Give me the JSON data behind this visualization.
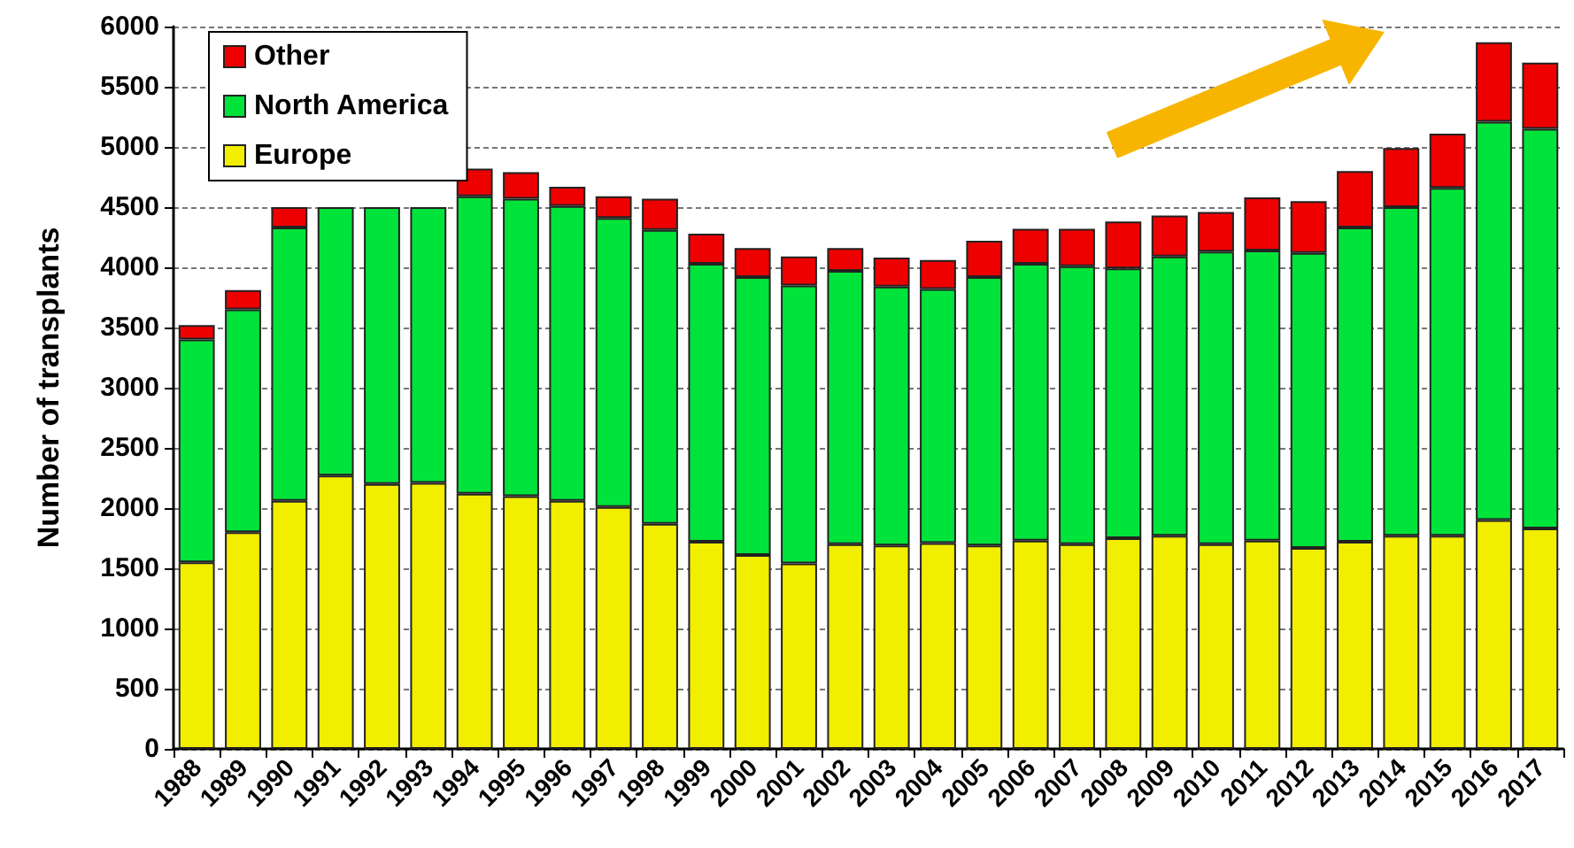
{
  "chart_data": {
    "type": "bar",
    "stacked": true,
    "ylabel": "Number of transplants",
    "categories": [
      "1988",
      "1989",
      "1990",
      "1991",
      "1992",
      "1993",
      "1994",
      "1995",
      "1996",
      "1997",
      "1998",
      "1999",
      "2000",
      "2001",
      "2002",
      "2003",
      "2004",
      "2005",
      "2006",
      "2007",
      "2008",
      "2009",
      "2010",
      "2011",
      "2012",
      "2013",
      "2014",
      "2015",
      "2016",
      "2017"
    ],
    "series": [
      {
        "name": "Europe",
        "color": "#f2ee00",
        "values": [
          1550,
          1800,
          2060,
          2270,
          2200,
          2210,
          2120,
          2100,
          2060,
          2010,
          1870,
          1720,
          1610,
          1540,
          1700,
          1690,
          1710,
          1690,
          1730,
          1700,
          1750,
          1770,
          1700,
          1730,
          1670,
          1720,
          1770,
          1770,
          1900,
          1830
        ]
      },
      {
        "name": "North America",
        "color": "#00e33a",
        "values": [
          1850,
          1850,
          2270,
          2230,
          2300,
          2290,
          2470,
          2470,
          2450,
          2400,
          2440,
          2310,
          2310,
          2310,
          2270,
          2150,
          2110,
          2230,
          2300,
          2310,
          2240,
          2320,
          2430,
          2410,
          2450,
          2610,
          2730,
          2890,
          3310,
          3320
        ]
      },
      {
        "name": "Other",
        "color": "#ee0000",
        "values": [
          120,
          160,
          170,
          null,
          null,
          null,
          230,
          220,
          160,
          180,
          260,
          250,
          240,
          240,
          190,
          240,
          240,
          300,
          290,
          310,
          390,
          340,
          330,
          440,
          430,
          470,
          490,
          450,
          660,
          550
        ]
      }
    ],
    "ylim": [
      0,
      6000
    ],
    "yticks": [
      0,
      500,
      1000,
      1500,
      2000,
      2500,
      3000,
      3500,
      4000,
      4500,
      5000,
      5500,
      6000
    ],
    "grid": "y",
    "legend": "top left"
  }
}
